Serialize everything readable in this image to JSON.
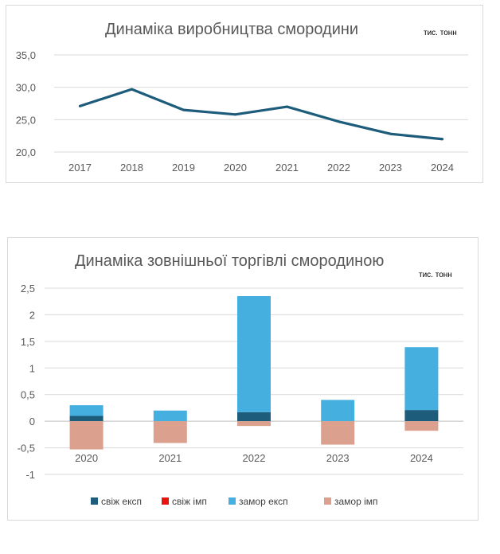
{
  "chart_data": [
    {
      "type": "line",
      "title": "Динаміка виробництва смородини",
      "unit_label": "тис. тонн",
      "categories": [
        "2017",
        "2018",
        "2019",
        "2020",
        "2021",
        "2022",
        "2023",
        "2024"
      ],
      "series": [
        {
          "name": "виробництво",
          "color": "#1d5c7a",
          "values": [
            27.1,
            29.7,
            26.5,
            25.8,
            27.0,
            24.7,
            22.8,
            22.0
          ]
        }
      ],
      "y_ticks": [
        "35,0",
        "30,0",
        "25,0",
        "20,0"
      ],
      "ylim": [
        20,
        35
      ],
      "grid": true,
      "legend": "none"
    },
    {
      "type": "bar",
      "stacked": true,
      "title": "Динаміка зовнішньої торгівлі смородиною",
      "unit_label": "тис. тонн",
      "categories": [
        "2020",
        "2021",
        "2022",
        "2023",
        "2024"
      ],
      "series": [
        {
          "name": "свіж експ",
          "color": "#1d5c7a",
          "values": [
            0.1,
            0.0,
            0.17,
            0.0,
            0.21
          ]
        },
        {
          "name": "свіж імп",
          "color": "#e8140f",
          "values": [
            0.0,
            0.0,
            0.0,
            0.0,
            0.0
          ]
        },
        {
          "name": "замор експ",
          "color": "#45b0e0",
          "values": [
            0.2,
            0.2,
            2.18,
            0.4,
            1.18
          ]
        },
        {
          "name": "замор імп",
          "color": "#dba08e",
          "values": [
            -0.53,
            -0.41,
            -0.09,
            -0.44,
            -0.18
          ]
        }
      ],
      "legend_labels": [
        "свіж експ",
        "свіж імп",
        "замор експ",
        "замор імп"
      ],
      "y_ticks": [
        "2,5",
        "2",
        "1,5",
        "1",
        "0,5",
        "0",
        "-0,5",
        "-1"
      ],
      "ylim": [
        -1,
        2.5
      ],
      "grid": true,
      "legend": "bottom"
    }
  ]
}
